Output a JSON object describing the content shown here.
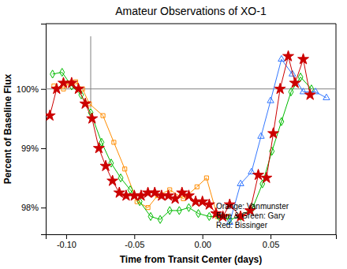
{
  "chart_data": {
    "type": "line",
    "title": "Amateur Observations of XO-1",
    "x_label": "Time from Transit Center (days)",
    "y_label": "Percent of Baseline Flux",
    "xlim": [
      -0.115,
      0.098
    ],
    "ylim": [
      97.55,
      101.1
    ],
    "xticks": [
      {
        "value": -0.1,
        "label": "-0.10"
      },
      {
        "value": -0.05,
        "label": "-0.05"
      },
      {
        "value": 0.0,
        "label": "0.00"
      },
      0.05
    ],
    "yticks": [
      {
        "value": 98.0,
        "label": "98%"
      },
      {
        "value": 99.0,
        "label": "99%"
      },
      {
        "value": 100.0,
        "label": "100%"
      }
    ],
    "grid": false,
    "series": [
      {
        "color": "#FF8C00",
        "marker": "square",
        "x": [
          -0.109,
          -0.102,
          -0.098,
          -0.093,
          -0.088,
          -0.083,
          -0.073,
          -0.065,
          -0.057,
          -0.048,
          -0.04,
          -0.033,
          -0.024,
          -0.014,
          -0.004,
          0.003,
          0.011,
          0.018
        ],
        "values": [
          100.05,
          100.0,
          100.1,
          100.12,
          100.0,
          99.75,
          99.55,
          99.1,
          98.65,
          98.1,
          98.0,
          98.2,
          98.3,
          98.15,
          98.35,
          98.5,
          97.85,
          97.85
        ]
      },
      {
        "color": "#CC0000",
        "marker": "star",
        "x": [
          -0.112,
          -0.107,
          -0.102,
          -0.096,
          -0.091,
          -0.086,
          -0.081,
          -0.076,
          -0.071,
          -0.066,
          -0.061,
          -0.056,
          -0.05,
          -0.045,
          -0.04,
          -0.035,
          -0.03,
          -0.025,
          -0.02,
          -0.015,
          -0.01,
          -0.005,
          0.0,
          0.005,
          0.01,
          0.015,
          0.02,
          0.028,
          0.035,
          0.041,
          0.047,
          0.052,
          0.057,
          0.063,
          0.068,
          0.074,
          0.079
        ],
        "values": [
          99.55,
          100.0,
          100.1,
          100.1,
          100.0,
          99.75,
          99.5,
          99.0,
          98.7,
          98.45,
          98.25,
          98.2,
          98.2,
          98.2,
          98.25,
          98.25,
          98.2,
          98.2,
          98.15,
          98.25,
          98.2,
          98.1,
          98.1,
          98.05,
          97.9,
          97.85,
          98.05,
          97.85,
          97.95,
          98.55,
          98.5,
          99.25,
          100.0,
          100.55,
          100.1,
          100.5,
          99.9
        ]
      },
      {
        "color": "#00BB00",
        "marker": "diamond",
        "x": [
          -0.11,
          -0.103,
          -0.096,
          -0.089,
          -0.082,
          -0.074,
          -0.067,
          -0.06,
          -0.053,
          -0.046,
          -0.038,
          -0.031,
          -0.024,
          -0.017,
          -0.01,
          -0.003,
          0.005,
          0.012,
          0.02,
          0.028,
          0.037,
          0.044,
          0.051,
          0.058,
          0.065,
          0.072,
          0.08
        ],
        "values": [
          100.25,
          100.28,
          100.05,
          99.9,
          99.6,
          99.1,
          98.75,
          98.5,
          98.3,
          98.1,
          97.85,
          97.8,
          97.95,
          97.95,
          98.0,
          97.9,
          97.85,
          97.85,
          97.8,
          97.85,
          98.0,
          98.4,
          98.95,
          99.45,
          99.95,
          100.2,
          100.0
        ]
      },
      {
        "color": "#3377FF",
        "marker": "triangle",
        "x": [
          0.02,
          0.028,
          0.036,
          0.043,
          0.05,
          0.058,
          0.066,
          0.074,
          0.083,
          0.091
        ],
        "values": [
          97.75,
          98.4,
          98.6,
          99.2,
          99.8,
          100.5,
          100.25,
          99.95,
          99.95,
          99.85
        ]
      }
    ],
    "hline": 100.0,
    "vline": {
      "x": -0.082,
      "y": [
        99.68,
        100.887
      ]
    },
    "annotations": [
      {
        "text": "Orange: Vanmunster\nBlue & Green: Gary\nRed: Bissinger",
        "x": 0.01,
        "y": 97.62
      }
    ]
  }
}
